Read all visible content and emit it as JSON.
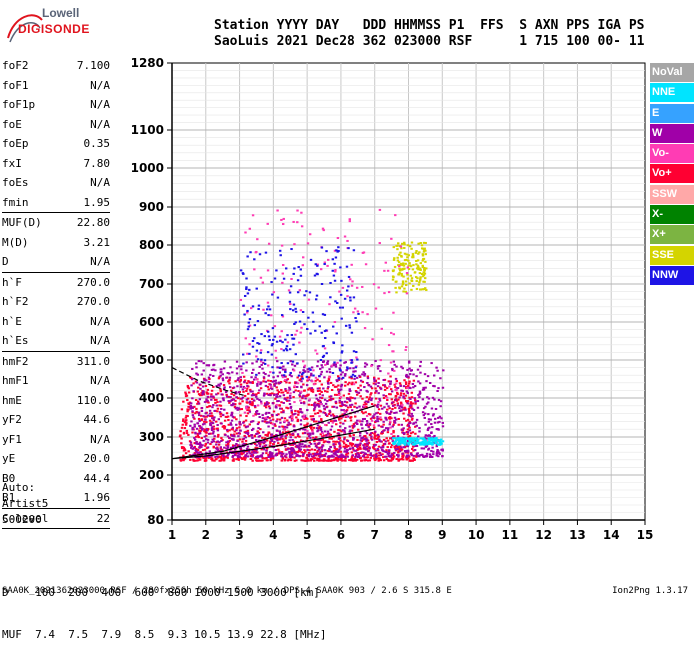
{
  "logo": {
    "line1": "Lowell",
    "line2": "DIGISONDE"
  },
  "header": {
    "line1": "Station YYYY DAY   DDD HHMMSS P1  FFS  S AXN PPS IGA PS",
    "line2": "SaoLuis 2021 Dec28 362 023000 RSF      1 715 100 00- 11"
  },
  "parameters": [
    {
      "name": "foF2",
      "value": "7.100"
    },
    {
      "name": "foF1",
      "value": "N/A"
    },
    {
      "name": "foF1p",
      "value": "N/A"
    },
    {
      "name": "foE",
      "value": "N/A"
    },
    {
      "name": "foEp",
      "value": "0.35"
    },
    {
      "name": "fxI",
      "value": "7.80"
    },
    {
      "name": "foEs",
      "value": "N/A"
    },
    {
      "name": "fmin",
      "value": "1.95"
    },
    {
      "name": "MUF(D)",
      "value": "22.80",
      "sep": true
    },
    {
      "name": "M(D)",
      "value": "3.21"
    },
    {
      "name": "D",
      "value": "N/A"
    },
    {
      "name": "h`F",
      "value": "270.0",
      "sep": true
    },
    {
      "name": "h`F2",
      "value": "270.0"
    },
    {
      "name": "h`E",
      "value": "N/A"
    },
    {
      "name": "h`Es",
      "value": "N/A"
    },
    {
      "name": "hmF2",
      "value": "311.0",
      "sep": true
    },
    {
      "name": "hmF1",
      "value": "N/A"
    },
    {
      "name": "hmE",
      "value": "110.0"
    },
    {
      "name": "yF2",
      "value": "44.6"
    },
    {
      "name": "yF1",
      "value": "N/A"
    },
    {
      "name": "yE",
      "value": "20.0"
    },
    {
      "name": "B0",
      "value": "44.4"
    },
    {
      "name": "B1",
      "value": "1.96"
    },
    {
      "name": "C-level",
      "value": "22",
      "sep": true
    }
  ],
  "autoscale": {
    "line1": "Auto:",
    "line2": "Artist5",
    "line3": "500200"
  },
  "legend": [
    {
      "label": "NoVal",
      "color": "#a6a6a6"
    },
    {
      "label": "NNE",
      "color": "#00e4ff"
    },
    {
      "label": "E",
      "color": "#36a2ff"
    },
    {
      "label": "W",
      "color": "#a000a8"
    },
    {
      "label": "Vo-",
      "color": "#ff3cb4"
    },
    {
      "label": "Vo+",
      "color": "#ff0032"
    },
    {
      "label": "SSW",
      "color": "#ffa8a8"
    },
    {
      "label": "X-",
      "color": "#008200"
    },
    {
      "label": "X+",
      "color": "#7cb442"
    },
    {
      "label": "SSE",
      "color": "#d4d400"
    },
    {
      "label": "NNW",
      "color": "#1e14e6"
    }
  ],
  "muf_table": {
    "line1": "D    100  200  400  600  800 1000 1500 3000 [km]",
    "line2": "MUF  7.4  7.5  7.9  8.5  9.3 10.5 13.9 22.8 [MHz]"
  },
  "footer": {
    "left": "SAA0K_2021362023000.RSF / 280fx256h 50 kHz 5.0 km / DPS-4 SAA0K 903 / 2.6 S 315.8 E",
    "right": "Ion2Png 1.3.17"
  },
  "chart_data": {
    "type": "scatter",
    "title": "",
    "xlabel": "",
    "ylabel": "",
    "x_unit": "MHz",
    "y_unit": "km",
    "xlim": [
      1,
      15
    ],
    "ylim": [
      80,
      1280
    ],
    "x_ticks": [
      1,
      2,
      3,
      4,
      5,
      6,
      7,
      8,
      9,
      10,
      11,
      12,
      13,
      14,
      15
    ],
    "y_ticks": [
      80,
      200,
      300,
      400,
      500,
      600,
      700,
      800,
      900,
      1000,
      1100,
      1280
    ],
    "grid": true,
    "scale": "log-like ionogram height axis",
    "trace_lines": [
      {
        "name": "",
        "style": "solid",
        "points": [
          [
            1.0,
            243
          ],
          [
            2.0,
            250
          ],
          [
            3.0,
            262
          ],
          [
            4.0,
            275
          ],
          [
            5.0,
            290
          ],
          [
            6.0,
            305
          ],
          [
            7.0,
            320
          ]
        ]
      },
      {
        "name": "",
        "style": "solid",
        "points": [
          [
            1.0,
            243
          ],
          [
            2.5,
            262
          ],
          [
            4.0,
            300
          ],
          [
            5.5,
            340
          ],
          [
            7.0,
            380
          ]
        ]
      },
      {
        "name": "",
        "style": "dashed",
        "points": [
          [
            1.0,
            480
          ],
          [
            1.8,
            445
          ],
          [
            2.6,
            420
          ],
          [
            3.2,
            405
          ]
        ]
      }
    ],
    "echo_regions": [
      {
        "color_key": "Vo+",
        "x_range": [
          1.2,
          8.2
        ],
        "y_range": [
          240,
          460
        ],
        "density": "high"
      },
      {
        "color_key": "W",
        "x_range": [
          1.5,
          9.0
        ],
        "y_range": [
          250,
          500
        ],
        "density": "high"
      },
      {
        "color_key": "SSE",
        "x_range": [
          7.5,
          8.5
        ],
        "y_range": [
          680,
          810
        ],
        "density": "medium"
      },
      {
        "color_key": "NNE",
        "x_range": [
          7.5,
          9.0
        ],
        "y_range": [
          282,
          300
        ],
        "density": "medium"
      },
      {
        "color_key": "Vo-",
        "x_range": [
          3.0,
          8.0
        ],
        "y_range": [
          300,
          900
        ],
        "density": "low"
      },
      {
        "color_key": "NNW",
        "x_range": [
          3.0,
          6.5
        ],
        "y_range": [
          450,
          800
        ],
        "density": "low"
      }
    ]
  }
}
